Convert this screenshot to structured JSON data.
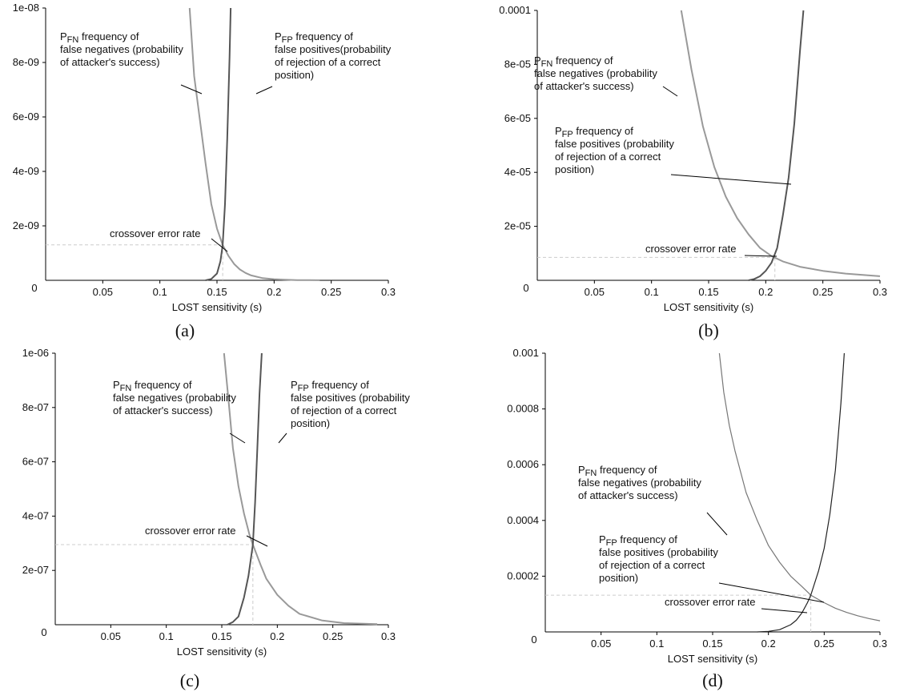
{
  "chart_data": [
    {
      "type": "line",
      "panel_label": "(a)",
      "xlabel": "LOST sensitivity (s)",
      "ylabel": "",
      "xlim": [
        0,
        0.3
      ],
      "ylim": [
        0,
        1e-08
      ],
      "x_ticks": [
        "0.05",
        "0.1",
        "0.15",
        "0.2",
        "0.25",
        "0.3"
      ],
      "y_ticks": [
        "2e-09",
        "4e-09",
        "6e-09",
        "8e-09",
        "1e-08"
      ],
      "origin_label": "0",
      "crossover": {
        "x": 0.155,
        "y": 1.3e-09
      },
      "colors": {
        "fn": "#999999",
        "fp": "#555555",
        "guide": "#cccccc"
      },
      "annotations": {
        "fn": {
          "prefix": "P",
          "sub": "FN",
          "rest": " frequency of",
          "lines": [
            "false negatives (probability",
            "of attacker's success)"
          ]
        },
        "fp": {
          "prefix": "P",
          "sub": "FP",
          "rest": " frequency of",
          "lines": [
            "false positives(probability",
            "of rejection of a correct",
            "position)"
          ]
        },
        "crossover": "crossover error rate"
      },
      "series": [
        {
          "name": "P_FN",
          "x": [
            0.126,
            0.13,
            0.135,
            0.14,
            0.145,
            0.15,
            0.155,
            0.16,
            0.165,
            0.17,
            0.175,
            0.18,
            0.19,
            0.2,
            0.21,
            0.22,
            0.23,
            0.24
          ],
          "values": [
            1e-08,
            7.5e-09,
            5.9e-09,
            4.3e-09,
            2.8e-09,
            1.9e-09,
            1.3e-09,
            9e-10,
            6e-10,
            4e-10,
            2.7e-10,
            1.8e-10,
            8e-11,
            4e-11,
            2e-11,
            1e-11,
            5e-12,
            2e-12
          ]
        },
        {
          "name": "P_FP",
          "x": [
            0.14,
            0.145,
            0.15,
            0.153,
            0.155,
            0.157,
            0.159,
            0.161,
            0.162
          ],
          "values": [
            0,
            5e-11,
            2.5e-10,
            7e-10,
            1.3e-09,
            2.8e-09,
            5.2e-09,
            8.2e-09,
            1e-08
          ]
        }
      ]
    },
    {
      "type": "line",
      "panel_label": "(b)",
      "xlabel": "LOST sensitivity (s)",
      "ylabel": "",
      "xlim": [
        0,
        0.3
      ],
      "ylim": [
        0,
        0.0001
      ],
      "x_ticks": [
        "0.05",
        "0.1",
        "0.15",
        "0.2",
        "0.25",
        "0.3"
      ],
      "y_ticks": [
        "2e-05",
        "4e-05",
        "6e-05",
        "8e-05",
        "0.0001"
      ],
      "origin_label": "0",
      "crossover": {
        "x": 0.208,
        "y": 8.5e-06
      },
      "colors": {
        "fn": "#999999",
        "fp": "#555555",
        "guide": "#cccccc"
      },
      "annotations": {
        "fn": {
          "prefix": "P",
          "sub": "FN",
          "rest": " frequency of",
          "lines": [
            "false negatives (probability",
            "of attacker's success)"
          ]
        },
        "fp": {
          "prefix": "P",
          "sub": "FP",
          "rest": " frequency of",
          "lines": [
            "false positives (probability",
            "of rejection of a correct",
            "position)"
          ]
        },
        "crossover": "crossover error rate"
      },
      "series": [
        {
          "name": "P_FN",
          "x": [
            0.126,
            0.135,
            0.145,
            0.155,
            0.165,
            0.175,
            0.185,
            0.195,
            0.205,
            0.215,
            0.23,
            0.25,
            0.27,
            0.3
          ],
          "values": [
            0.0001,
            7.8e-05,
            5.7e-05,
            4.2e-05,
            3.1e-05,
            2.3e-05,
            1.7e-05,
            1.2e-05,
            9e-06,
            7e-06,
            5e-06,
            3.5e-06,
            2.5e-06,
            1.5e-06
          ]
        },
        {
          "name": "P_FP",
          "x": [
            0.185,
            0.19,
            0.195,
            0.2,
            0.205,
            0.21,
            0.215,
            0.22,
            0.225,
            0.23,
            0.233
          ],
          "values": [
            0,
            5e-07,
            1.5e-06,
            3.5e-06,
            6.5e-06,
            1.2e-05,
            2.4e-05,
            3.8e-05,
            5.8e-05,
            8.5e-05,
            0.0001
          ]
        }
      ]
    },
    {
      "type": "line",
      "panel_label": "(c)",
      "xlabel": "LOST sensitivity (s)",
      "ylabel": "",
      "xlim": [
        0,
        0.3
      ],
      "ylim": [
        0,
        1e-06
      ],
      "x_ticks": [
        "0.05",
        "0.1",
        "0.15",
        "0.2",
        "0.25",
        "0.3"
      ],
      "y_ticks": [
        "2e-07",
        "4e-07",
        "6e-07",
        "8e-07",
        "1e-06"
      ],
      "origin_label": "0",
      "crossover": {
        "x": 0.178,
        "y": 2.95e-07
      },
      "colors": {
        "fn": "#999999",
        "fp": "#555555",
        "guide": "#cccccc"
      },
      "annotations": {
        "fn": {
          "prefix": "P",
          "sub": "FN",
          "rest": " frequency of",
          "lines": [
            "false negatives (probability",
            "of attacker's success)"
          ]
        },
        "fp": {
          "prefix": "P",
          "sub": "FP",
          "rest": " frequency of",
          "lines": [
            "false positives (probability",
            "of rejection of a correct",
            "position)"
          ]
        },
        "crossover": "crossover error rate"
      },
      "series": [
        {
          "name": "P_FN",
          "x": [
            0.152,
            0.156,
            0.16,
            0.165,
            0.17,
            0.175,
            0.178,
            0.185,
            0.19,
            0.2,
            0.21,
            0.22,
            0.24,
            0.26,
            0.29
          ],
          "values": [
            1e-06,
            8.3e-07,
            6.5e-07,
            5.1e-07,
            4.1e-07,
            3.3e-07,
            2.95e-07,
            2.2e-07,
            1.7e-07,
            1.1e-07,
            7e-08,
            4e-08,
            1.6e-08,
            6e-09,
            2e-09
          ]
        },
        {
          "name": "P_FP",
          "x": [
            0.155,
            0.16,
            0.165,
            0.17,
            0.174,
            0.178,
            0.18,
            0.182,
            0.184,
            0.186
          ],
          "values": [
            0,
            1e-08,
            3e-08,
            1e-07,
            1.8e-07,
            2.95e-07,
            4.5e-07,
            6.5e-07,
            8.5e-07,
            1e-06
          ]
        }
      ]
    },
    {
      "type": "line",
      "panel_label": "(d)",
      "xlabel": "LOST sensitivity (s)",
      "ylabel": "",
      "xlim": [
        0,
        0.3
      ],
      "ylim": [
        0,
        0.001
      ],
      "x_ticks": [
        "0.05",
        "0.1",
        "0.15",
        "0.2",
        "0.25",
        "0.3"
      ],
      "y_ticks": [
        "0.0002",
        "0.0004",
        "0.0006",
        "0.0008",
        "0.001"
      ],
      "origin_label": "0",
      "crossover": {
        "x": 0.238,
        "y": 0.000132
      },
      "colors": {
        "fn": "#777777",
        "fp": "#222222",
        "guide": "#cccccc"
      },
      "annotations": {
        "fn": {
          "prefix": "P",
          "sub": "FN",
          "rest": " frequency of",
          "lines": [
            "false negatives (probability",
            "of attacker's success)"
          ]
        },
        "fp": {
          "prefix": "P",
          "sub": "FP",
          "rest": " frequency of",
          "lines": [
            "false positives (probability",
            "of rejection of a correct",
            "position)"
          ]
        },
        "crossover": "crossover error rate"
      },
      "series": [
        {
          "name": "P_FN",
          "x": [
            0.156,
            0.16,
            0.165,
            0.17,
            0.18,
            0.19,
            0.2,
            0.21,
            0.22,
            0.23,
            0.238,
            0.25,
            0.26,
            0.27,
            0.28,
            0.29,
            0.3
          ],
          "values": [
            0.001,
            0.00086,
            0.00074,
            0.00065,
            0.0005,
            0.0004,
            0.00031,
            0.00025,
            0.0002,
            0.000163,
            0.000132,
            0.000105,
            8.5e-05,
            7e-05,
            5.8e-05,
            4.8e-05,
            4e-05
          ]
        },
        {
          "name": "P_FP",
          "x": [
            0.19,
            0.2,
            0.21,
            0.22,
            0.225,
            0.23,
            0.235,
            0.238,
            0.245,
            0.25,
            0.255,
            0.26,
            0.265,
            0.268
          ],
          "values": [
            0,
            2e-06,
            8e-06,
            2.6e-05,
            4.2e-05,
            6.8e-05,
            0.000105,
            0.000132,
            0.00022,
            0.0003,
            0.00042,
            0.00058,
            0.00082,
            0.001
          ]
        }
      ]
    }
  ]
}
